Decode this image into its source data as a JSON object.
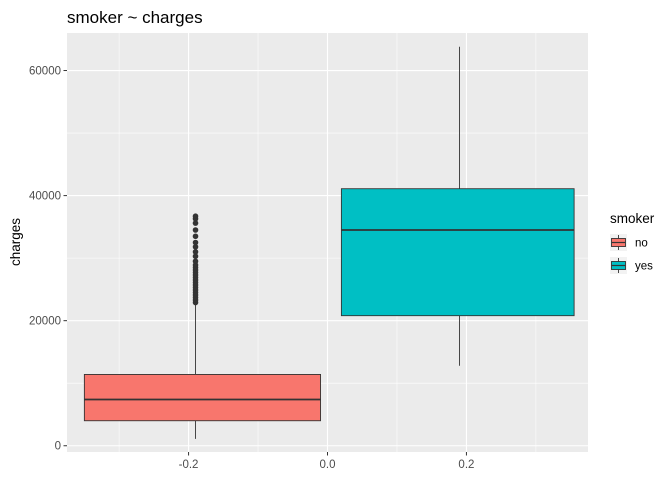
{
  "chart_data": {
    "type": "boxplot",
    "title": "smoker  ~ charges",
    "xlabel": "",
    "ylabel": "charges",
    "xlim": [
      -0.375,
      0.375
    ],
    "ylim": [
      -1000,
      66000
    ],
    "x_ticks": [
      -0.2,
      0.0,
      0.2
    ],
    "x_tick_labels": [
      "-0.2",
      "0.0",
      "0.2"
    ],
    "y_ticks": [
      0,
      20000,
      40000,
      60000
    ],
    "y_tick_labels": [
      "0",
      "20000",
      "40000",
      "60000"
    ],
    "grid": true,
    "legend": {
      "title": "smoker",
      "position": "right",
      "entries": [
        {
          "label": "no",
          "color": "#F8766D"
        },
        {
          "label": "yes",
          "color": "#00BFC4"
        }
      ]
    },
    "series": [
      {
        "name": "no",
        "color": "#F8766D",
        "x_range": [
          -0.35,
          -0.01
        ],
        "whisker_x": -0.19,
        "min": 1100,
        "q1": 4000,
        "median": 7400,
        "q3": 11400,
        "max": 22500,
        "outliers": [
          22900,
          23300,
          23700,
          24100,
          24500,
          24900,
          25300,
          25700,
          26100,
          26500,
          26900,
          27300,
          27700,
          28100,
          28500,
          28900,
          29500,
          30300,
          31000,
          31800,
          32500,
          33500,
          34500,
          35600,
          36300,
          36700
        ]
      },
      {
        "name": "yes",
        "color": "#00BFC4",
        "x_range": [
          0.02,
          0.355
        ],
        "whisker_x": 0.19,
        "min": 12800,
        "q1": 20800,
        "median": 34500,
        "q3": 41100,
        "max": 63800,
        "outliers": []
      }
    ]
  }
}
